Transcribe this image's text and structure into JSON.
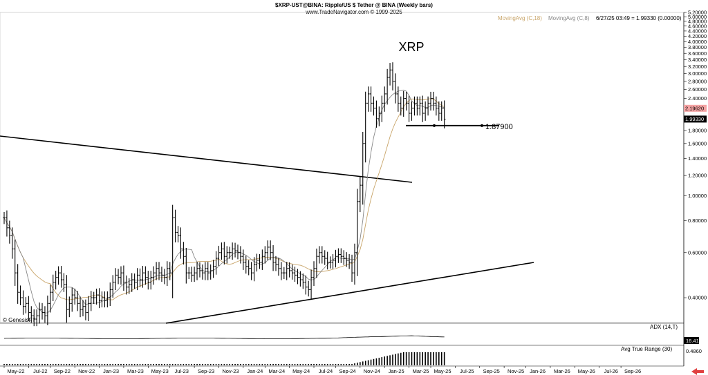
{
  "header": {
    "title": "$XRP-UST@BINA:  Ripple/US $ Tether @ BINA  (Weekly bars)",
    "source": "www.TradeNavigator.com © 1999-2025",
    "legend_ma18": "MovingAvg (C,18)",
    "legend_ma8": "MovingAvg (C,8)",
    "quote": "6/27/25 03:49 = 1.99330 (0.00000)",
    "watermark": "© GenesisFT"
  },
  "colors": {
    "ma18": "#c8a468",
    "ma8": "#888888",
    "price_tag": "#f4a3a3",
    "arrow": "#e04040"
  },
  "chart_data": {
    "type": "line",
    "title": "XRP",
    "support_label": "1.87900",
    "support_level": 1.879,
    "current_price": 1.9933,
    "ma_price_tag": 2.1962,
    "y_scale": "log",
    "ylim": [
      0.32,
      5.2
    ],
    "y_ticks": [
      "0.40000",
      "0.60000",
      "0.80000",
      "1.00000",
      "1.20000",
      "1.40000",
      "1.60000",
      "1.80000",
      "2.00000",
      "2.20000",
      "2.40000",
      "2.60000",
      "2.80000",
      "3.00000",
      "3.20000",
      "3.40000",
      "3.60000",
      "3.80000",
      "4.00000",
      "4.20000",
      "4.40000",
      "4.60000",
      "4.80000",
      "5.00000",
      "5.20000"
    ],
    "y_tick_values": [
      0.4,
      0.6,
      0.8,
      1.0,
      1.2,
      1.4,
      1.6,
      1.8,
      2.0,
      2.2,
      2.4,
      2.6,
      2.8,
      3.0,
      3.2,
      3.4,
      3.6,
      3.8,
      4.0,
      4.2,
      4.4,
      4.6,
      4.8,
      5.0,
      5.2
    ],
    "x_labels": [
      "May-22",
      "Jul-22",
      "Sep-22",
      "Nov-22",
      "Jan-23",
      "Mar-23",
      "May-23",
      "Jul-23",
      "Sep-23",
      "Nov-23",
      "Jan-24",
      "Mar-24",
      "May-24",
      "Jul-24",
      "Sep-24",
      "Nov-24",
      "Jan-25",
      "Mar-25",
      "May-25",
      "Jul-25",
      "Sep-25",
      "Nov-25",
      "Jan-26",
      "Mar-26",
      "May-26",
      "Jul-26",
      "Sep-26"
    ],
    "x_label_weeks": [
      0,
      9,
      17,
      26,
      35,
      44,
      53,
      61,
      70,
      79,
      88,
      96,
      105,
      114,
      122,
      131,
      140,
      149,
      157,
      166,
      175,
      184,
      192,
      201,
      210,
      219,
      227
    ],
    "series": [
      {
        "name": "",
        "values": [
          0.82,
          0.75,
          0.7,
          0.62,
          0.5,
          0.42,
          0.4,
          0.37,
          0.38,
          0.35,
          0.34,
          0.33,
          0.34,
          0.36,
          0.35,
          0.34,
          0.38,
          0.42,
          0.46,
          0.48,
          0.5,
          0.47,
          0.45,
          0.36,
          0.38,
          0.41,
          0.4,
          0.38,
          0.36,
          0.37,
          0.35,
          0.38,
          0.4,
          0.4,
          0.41,
          0.39,
          0.4,
          0.39,
          0.4,
          0.43,
          0.46,
          0.49,
          0.48,
          0.5,
          0.46,
          0.44,
          0.45,
          0.47,
          0.46,
          0.49,
          0.47,
          0.5,
          0.48,
          0.46,
          0.48,
          0.5,
          0.52,
          0.5,
          0.49,
          0.48,
          0.52,
          0.5,
          0.82,
          0.72,
          0.7,
          0.62,
          0.58,
          0.5,
          0.5,
          0.49,
          0.5,
          0.52,
          0.51,
          0.5,
          0.52,
          0.5,
          0.51,
          0.53,
          0.57,
          0.6,
          0.62,
          0.58,
          0.6,
          0.6,
          0.62,
          0.61,
          0.6,
          0.58,
          0.55,
          0.53,
          0.52,
          0.5,
          0.54,
          0.56,
          0.55,
          0.58,
          0.6,
          0.63,
          0.6,
          0.55,
          0.54,
          0.52,
          0.5,
          0.5,
          0.52,
          0.51,
          0.5,
          0.49,
          0.48,
          0.47,
          0.46,
          0.44,
          0.43,
          0.48,
          0.52,
          0.58,
          0.6,
          0.58,
          0.57,
          0.55,
          0.55,
          0.56,
          0.58,
          0.59,
          0.58,
          0.57,
          0.56,
          0.55,
          0.5,
          0.6,
          0.95,
          1.1,
          1.6,
          2.3,
          2.5,
          2.3,
          2.2,
          2.0,
          2.1,
          2.3,
          2.5,
          2.9,
          3.1,
          2.8,
          2.5,
          2.3,
          2.2,
          2.4,
          2.3,
          2.1,
          2.2,
          2.3,
          2.2,
          2.3,
          2.1,
          2.2,
          2.3,
          2.4,
          2.3,
          2.2,
          2.1,
          2.2,
          1.99
        ]
      },
      {
        "name": "MovingAvg (C,18)",
        "values": []
      },
      {
        "name": "MovingAvg (C,8)",
        "values": []
      }
    ],
    "indicators": [
      {
        "name": "ADX (14,T)",
        "last": "16.41"
      },
      {
        "name": "Avg True Range (30)",
        "last": "0.4860"
      }
    ]
  }
}
